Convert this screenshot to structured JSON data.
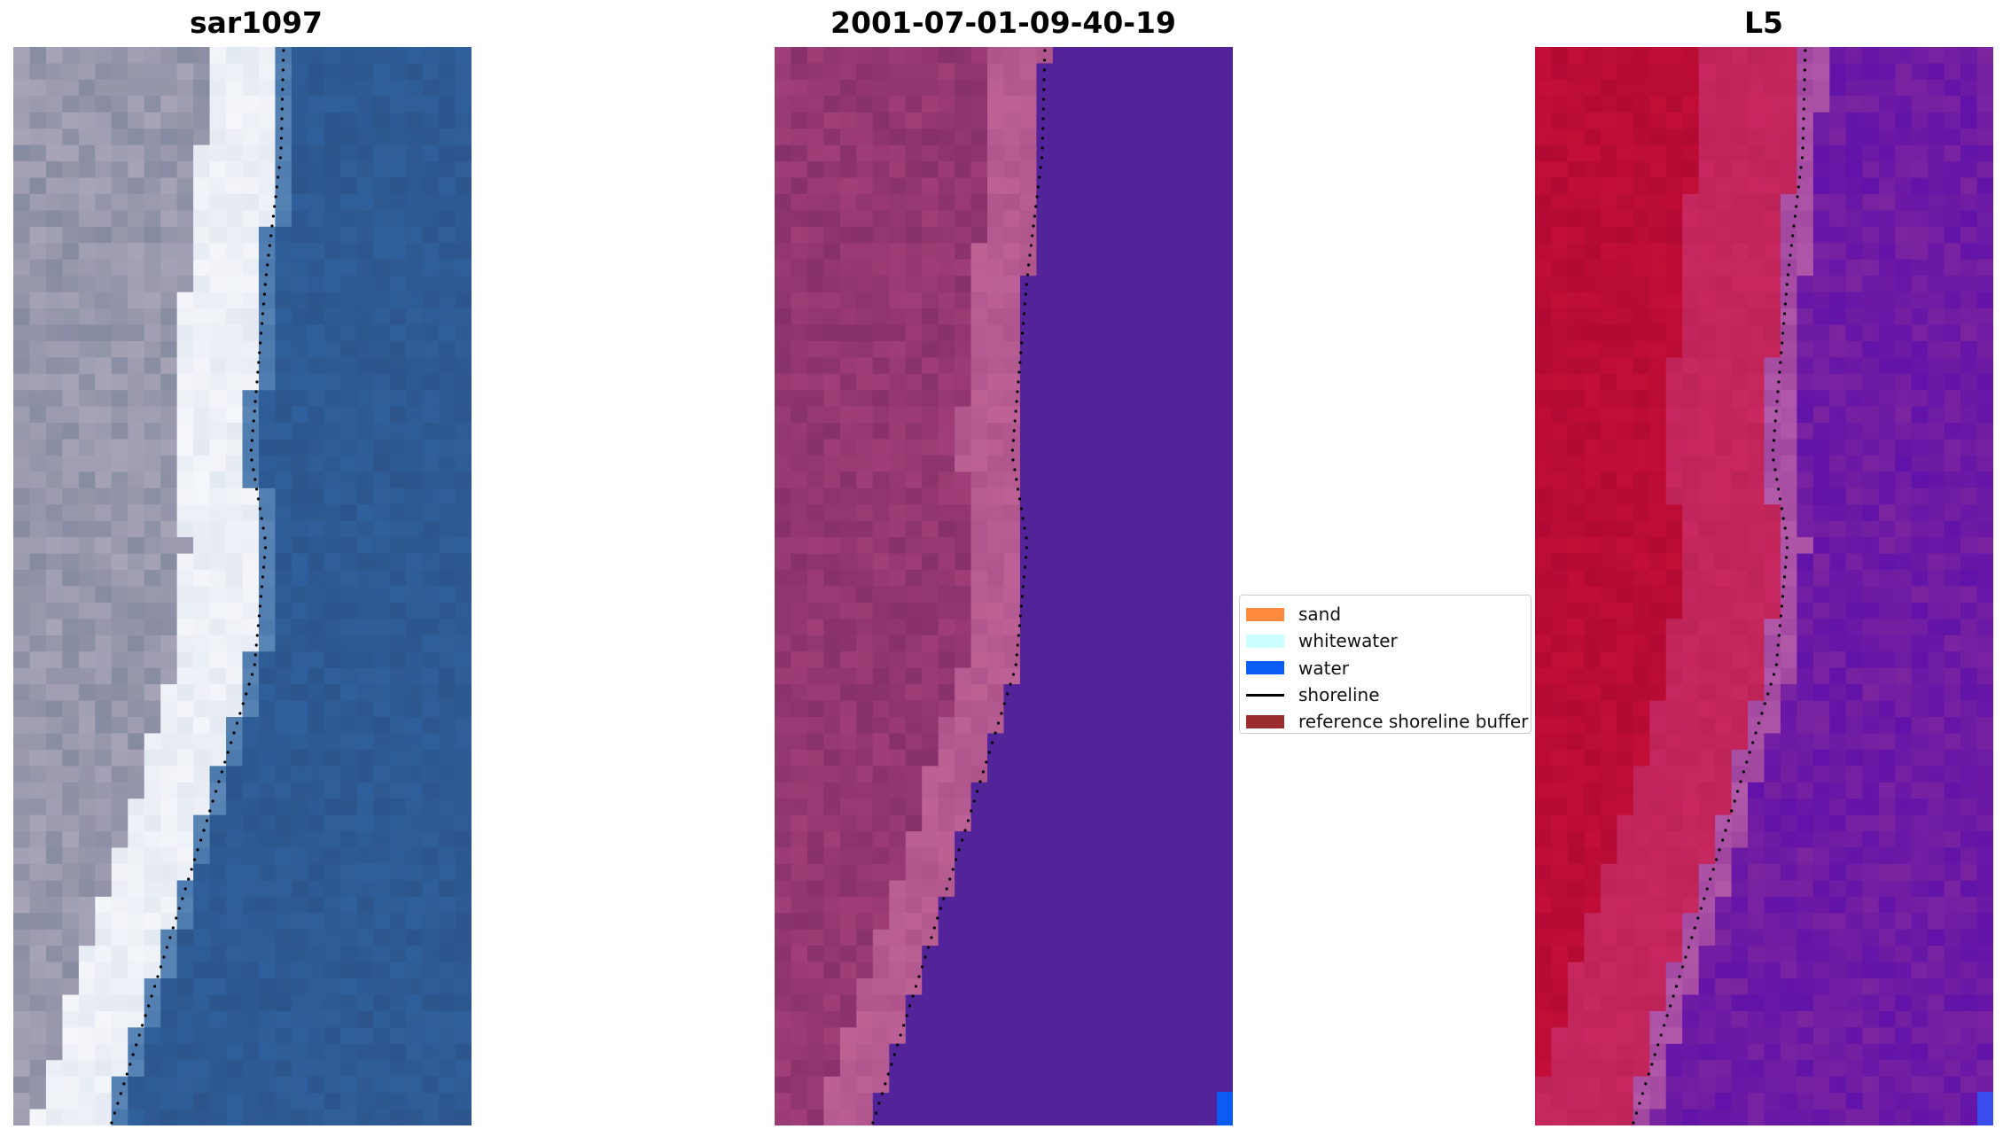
{
  "panels": [
    {
      "title": "sar1097",
      "image": "rgb satellite image"
    },
    {
      "title": "2001-07-01-09-40-19",
      "image": "classified image"
    },
    {
      "title": "L5",
      "image": "mndwi image"
    }
  ],
  "legend": {
    "items": [
      {
        "label": "sand",
        "color": "#ff8a3d",
        "kind": "patch"
      },
      {
        "label": "whitewater",
        "color": "#ccffff",
        "kind": "patch"
      },
      {
        "label": "water",
        "color": "#0a5cf5",
        "kind": "patch"
      },
      {
        "label": "shoreline",
        "color": "#000000",
        "kind": "line"
      },
      {
        "label": "reference shoreline buffer",
        "color": "#9b2d30",
        "kind": "patch"
      }
    ]
  },
  "colors": {
    "water_rgb": "#2f609c",
    "land_rgb": "#a8a4b8",
    "surf_rgb": "#f4f6fa",
    "class_water": "#53239a",
    "class_land": "#a23f78",
    "mndwi_land": "#c0103a",
    "mndwi_water": "#7a24a0"
  }
}
